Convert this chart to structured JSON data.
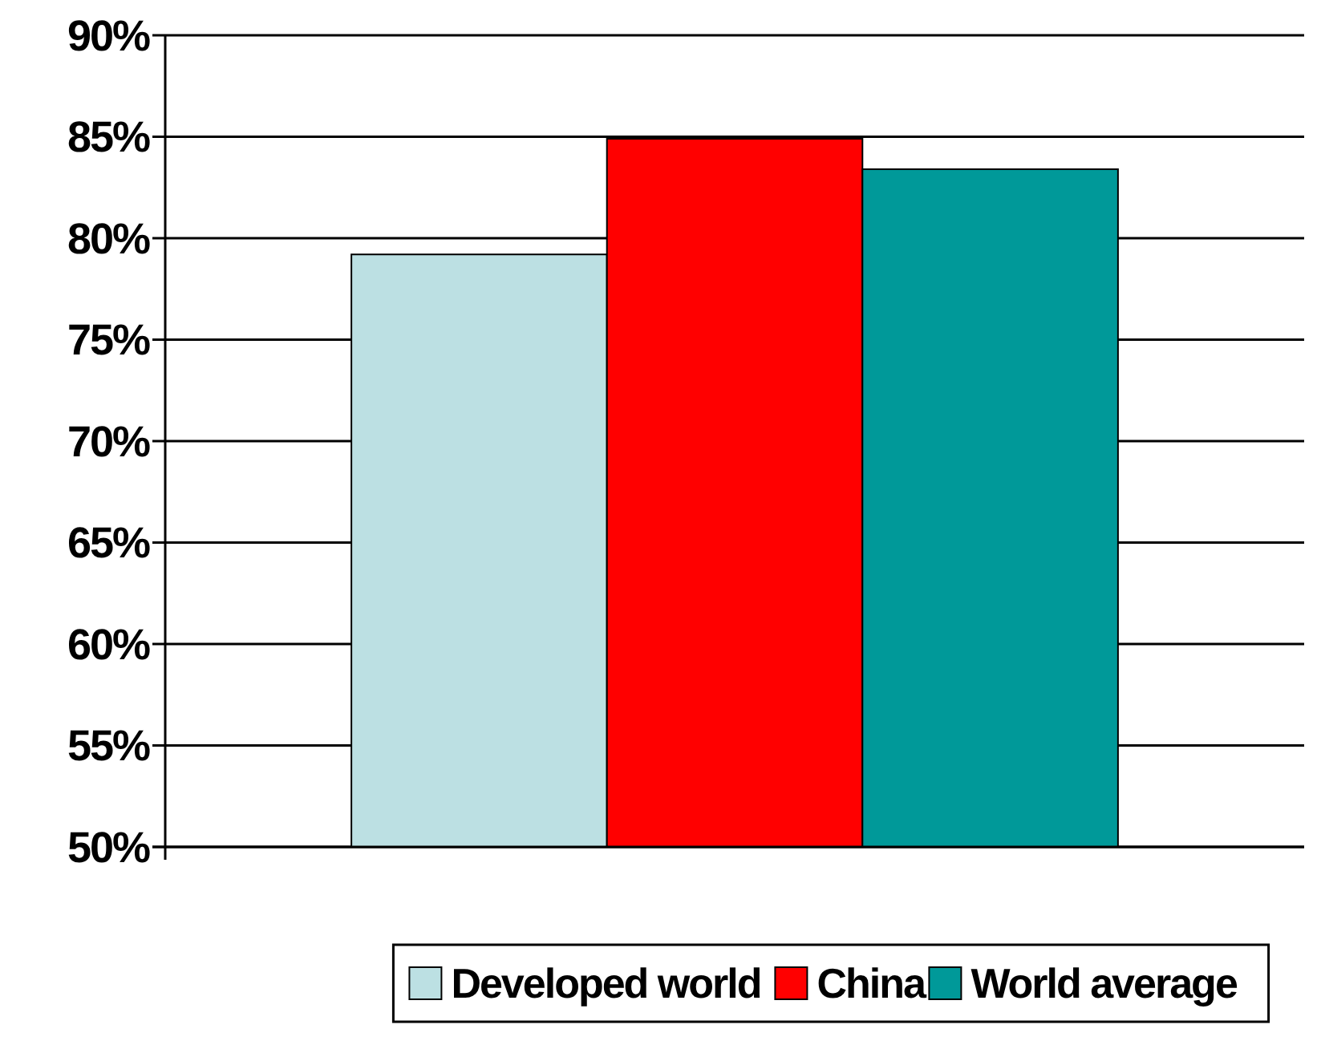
{
  "chart_data": {
    "type": "bar",
    "categories": [
      null
    ],
    "series": [
      {
        "name": "Developed world",
        "color": "#bce0e3",
        "values": [
          79.2
        ]
      },
      {
        "name": "China",
        "color": "#ff0000",
        "values": [
          84.9
        ]
      },
      {
        "name": "World average",
        "color": "#009999",
        "values": [
          83.4
        ]
      }
    ],
    "ylim": [
      50,
      90
    ],
    "yticks": [
      {
        "value": 50,
        "label": "50%"
      },
      {
        "value": 55,
        "label": "55%"
      },
      {
        "value": 60,
        "label": "60%"
      },
      {
        "value": 65,
        "label": "65%"
      },
      {
        "value": 70,
        "label": "70%"
      },
      {
        "value": 75,
        "label": "75%"
      },
      {
        "value": 80,
        "label": "80%"
      },
      {
        "value": 85,
        "label": "85%"
      },
      {
        "value": 90,
        "label": "90%"
      }
    ],
    "grid": "y",
    "legend": "bottom"
  }
}
